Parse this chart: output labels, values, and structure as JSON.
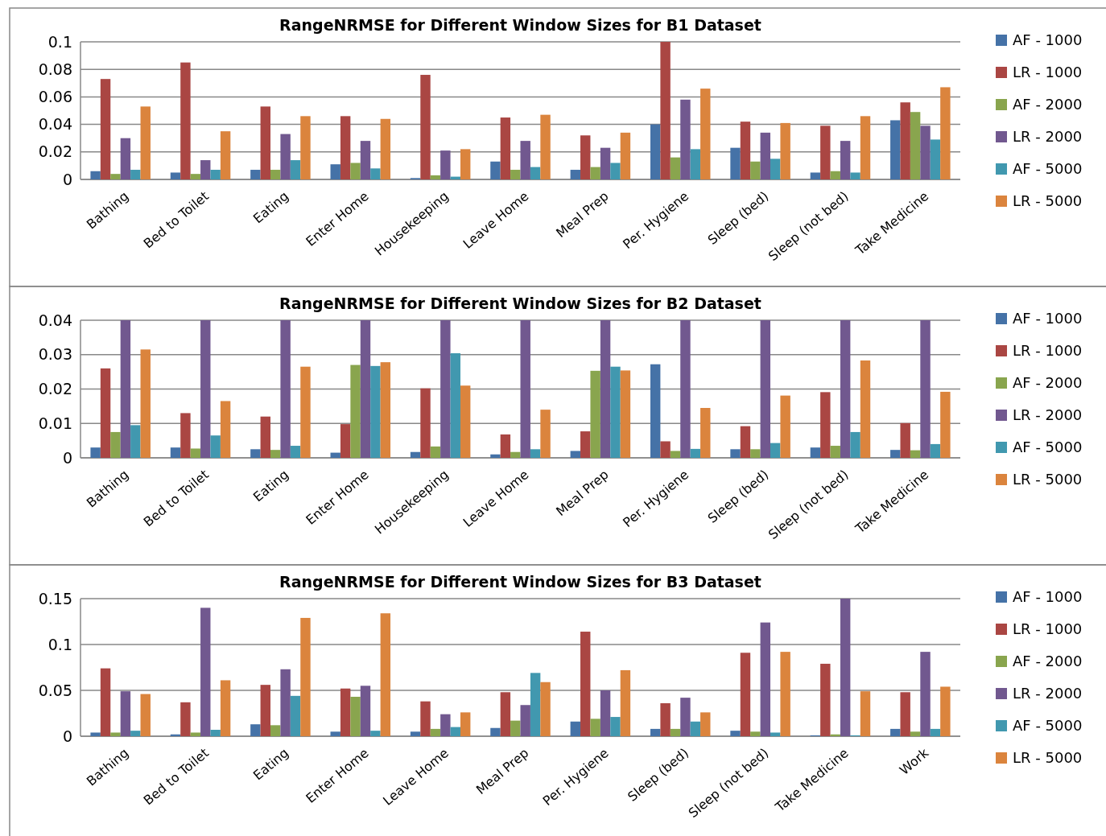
{
  "chart_data": [
    {
      "type": "bar",
      "title": "RangeNRMSE for Different Window Sizes for B1 Dataset",
      "categories": [
        "Bathing",
        "Bed to Toilet",
        "Eating",
        "Enter Home",
        "Housekeeping",
        "Leave Home",
        "Meal Prep",
        "Per. Hygiene",
        "Sleep (bed)",
        "Sleep (not bed)",
        "Take Medicine"
      ],
      "ylim": [
        0,
        0.1
      ],
      "yticks": [
        0,
        0.02,
        0.04,
        0.06,
        0.08,
        0.1
      ],
      "grid": "y",
      "legend": "right",
      "series": [
        {
          "name": "AF - 1000",
          "color": "#4572a7",
          "values": [
            0.006,
            0.005,
            0.007,
            0.011,
            0.001,
            0.013,
            0.007,
            0.04,
            0.023,
            0.005,
            0.043
          ]
        },
        {
          "name": "LR - 1000",
          "color": "#aa4643",
          "values": [
            0.073,
            0.085,
            0.053,
            0.046,
            0.076,
            0.045,
            0.032,
            0.1,
            0.042,
            0.039,
            0.056
          ]
        },
        {
          "name": "AF - 2000",
          "color": "#89a54e",
          "values": [
            0.004,
            0.004,
            0.007,
            0.012,
            0.003,
            0.007,
            0.009,
            0.016,
            0.013,
            0.006,
            0.049
          ]
        },
        {
          "name": "LR - 2000",
          "color": "#71588f",
          "values": [
            0.03,
            0.014,
            0.033,
            0.028,
            0.021,
            0.028,
            0.023,
            0.058,
            0.034,
            0.028,
            0.039
          ]
        },
        {
          "name": "AF - 5000",
          "color": "#4198af",
          "values": [
            0.007,
            0.007,
            0.014,
            0.008,
            0.002,
            0.009,
            0.012,
            0.022,
            0.015,
            0.005,
            0.029
          ]
        },
        {
          "name": "LR - 5000",
          "color": "#db843d",
          "values": [
            0.053,
            0.035,
            0.046,
            0.044,
            0.022,
            0.047,
            0.034,
            0.066,
            0.041,
            0.046,
            0.067
          ]
        }
      ]
    },
    {
      "type": "bar",
      "title": "RangeNRMSE for Different Window Sizes for B2 Dataset",
      "categories": [
        "Bathing",
        "Bed to Toilet",
        "Eating",
        "Enter Home",
        "Housekeeping",
        "Leave Home",
        "Meal Prep",
        "Per. Hygiene",
        "Sleep (bed)",
        "Sleep (not bed)",
        "Take Medicine"
      ],
      "ylim": [
        0,
        0.04
      ],
      "yticks": [
        0,
        0.01,
        0.02,
        0.03,
        0.04
      ],
      "grid": "y",
      "legend": "right",
      "series": [
        {
          "name": "AF - 1000",
          "color": "#4572a7",
          "values": [
            0.003,
            0.003,
            0.0025,
            0.0015,
            0.0017,
            0.001,
            0.002,
            0.0272,
            0.0025,
            0.003,
            0.0023
          ]
        },
        {
          "name": "LR - 1000",
          "color": "#aa4643",
          "values": [
            0.026,
            0.013,
            0.012,
            0.0098,
            0.0202,
            0.0068,
            0.0077,
            0.0048,
            0.0092,
            0.0191,
            0.0101
          ]
        },
        {
          "name": "AF - 2000",
          "color": "#89a54e",
          "values": [
            0.0075,
            0.0027,
            0.0023,
            0.027,
            0.0033,
            0.0017,
            0.0253,
            0.002,
            0.0025,
            0.0035,
            0.0022
          ]
        },
        {
          "name": "LR - 2000",
          "color": "#71588f",
          "values": [
            0.04,
            0.04,
            0.04,
            0.04,
            0.04,
            0.04,
            0.04,
            0.04,
            0.04,
            0.04,
            0.04
          ]
        },
        {
          "name": "AF - 5000",
          "color": "#4198af",
          "values": [
            0.0095,
            0.0065,
            0.0035,
            0.0267,
            0.0304,
            0.0025,
            0.0265,
            0.0026,
            0.0043,
            0.0075,
            0.004
          ]
        },
        {
          "name": "LR - 5000",
          "color": "#db843d",
          "values": [
            0.0315,
            0.0165,
            0.0265,
            0.0278,
            0.021,
            0.014,
            0.0254,
            0.0145,
            0.0181,
            0.0283,
            0.0192
          ]
        }
      ]
    },
    {
      "type": "bar",
      "title": "RangeNRMSE for Different Window Sizes for B3 Dataset",
      "categories": [
        "Bathing",
        "Bed to Toilet",
        "Eating",
        "Enter Home",
        "Leave Home",
        "Meal Prep",
        "Per. Hygiene",
        "Sleep (bed)",
        "Sleep (not bed)",
        "Take Medicine",
        "Work"
      ],
      "ylim": [
        0,
        0.15
      ],
      "yticks": [
        0,
        0.05,
        0.1,
        0.15
      ],
      "grid": "y",
      "legend": "right",
      "series": [
        {
          "name": "AF - 1000",
          "color": "#4572a7",
          "values": [
            0.004,
            0.002,
            0.013,
            0.005,
            0.005,
            0.009,
            0.016,
            0.008,
            0.006,
            0.001,
            0.008
          ]
        },
        {
          "name": "LR - 1000",
          "color": "#aa4643",
          "values": [
            0.074,
            0.037,
            0.056,
            0.052,
            0.038,
            0.048,
            0.114,
            0.036,
            0.091,
            0.079,
            0.048
          ]
        },
        {
          "name": "AF - 2000",
          "color": "#89a54e",
          "values": [
            0.004,
            0.004,
            0.012,
            0.043,
            0.008,
            0.017,
            0.019,
            0.008,
            0.005,
            0.002,
            0.005
          ]
        },
        {
          "name": "LR - 2000",
          "color": "#71588f",
          "values": [
            0.049,
            0.14,
            0.073,
            0.055,
            0.024,
            0.034,
            0.05,
            0.042,
            0.124,
            0.15,
            0.092
          ]
        },
        {
          "name": "AF - 5000",
          "color": "#4198af",
          "values": [
            0.006,
            0.007,
            0.044,
            0.006,
            0.01,
            0.069,
            0.021,
            0.016,
            0.004,
            0.001,
            0.008
          ]
        },
        {
          "name": "LR - 5000",
          "color": "#db843d",
          "values": [
            0.046,
            0.061,
            0.129,
            0.134,
            0.026,
            0.059,
            0.072,
            0.026,
            0.092,
            0.049,
            0.054
          ]
        }
      ]
    }
  ]
}
